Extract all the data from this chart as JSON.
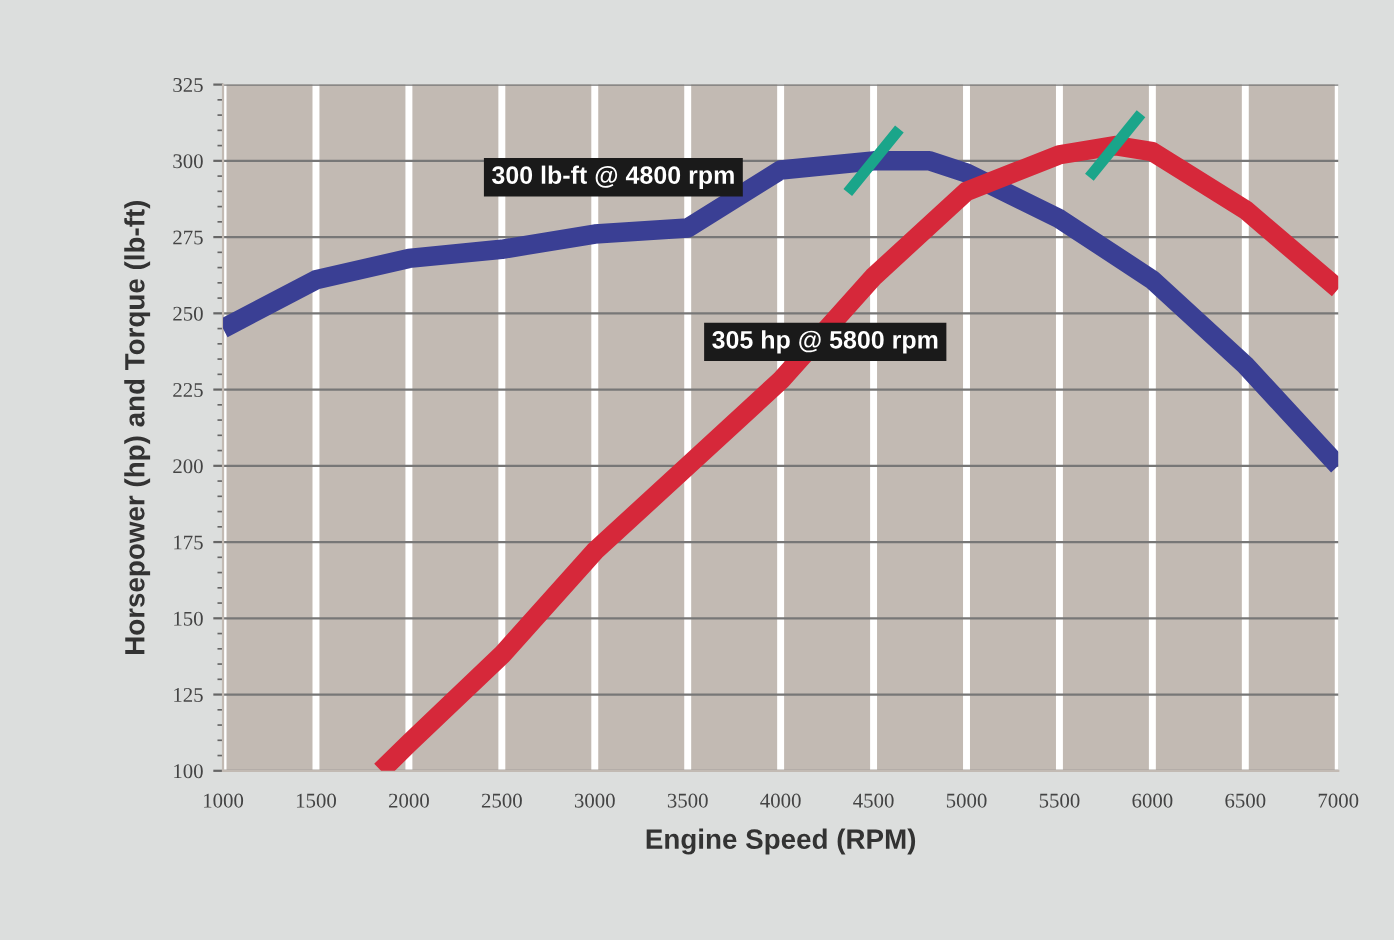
{
  "chart_data": {
    "type": "line",
    "xlabel": "Engine Speed (RPM)",
    "ylabel": "Horsepower (hp) and Torque (lb-ft)",
    "xlim": [
      1000,
      7000
    ],
    "ylim": [
      100,
      325
    ],
    "xticks": [
      1000,
      1500,
      2000,
      2500,
      3000,
      3500,
      4000,
      4500,
      5000,
      5500,
      6000,
      6500,
      7000
    ],
    "yticks": [
      100,
      125,
      150,
      175,
      200,
      225,
      250,
      275,
      300,
      325
    ],
    "grid": true,
    "marker": "none",
    "line_style": "solid",
    "series": [
      {
        "color": "#3a3f94",
        "x": [
          1000,
          1500,
          2000,
          2500,
          3000,
          3500,
          4000,
          4500,
          4800,
          5000,
          5500,
          6000,
          6500,
          7000
        ],
        "values": [
          245,
          261,
          268,
          271,
          276,
          278,
          297,
          300,
          300,
          296,
          281,
          261,
          233,
          200
        ]
      },
      {
        "color": "#d6283a",
        "x": [
          1850,
          2000,
          2500,
          3000,
          3500,
          4000,
          4500,
          5000,
          5500,
          5800,
          6000,
          6500,
          7000
        ],
        "values": [
          100,
          109,
          138,
          172,
          200,
          228,
          262,
          290,
          302,
          305,
          303,
          284,
          258
        ]
      }
    ],
    "annotations": [
      "300 lb-ft @ 4800 rpm",
      "305 hp @ 5800 rpm"
    ]
  }
}
